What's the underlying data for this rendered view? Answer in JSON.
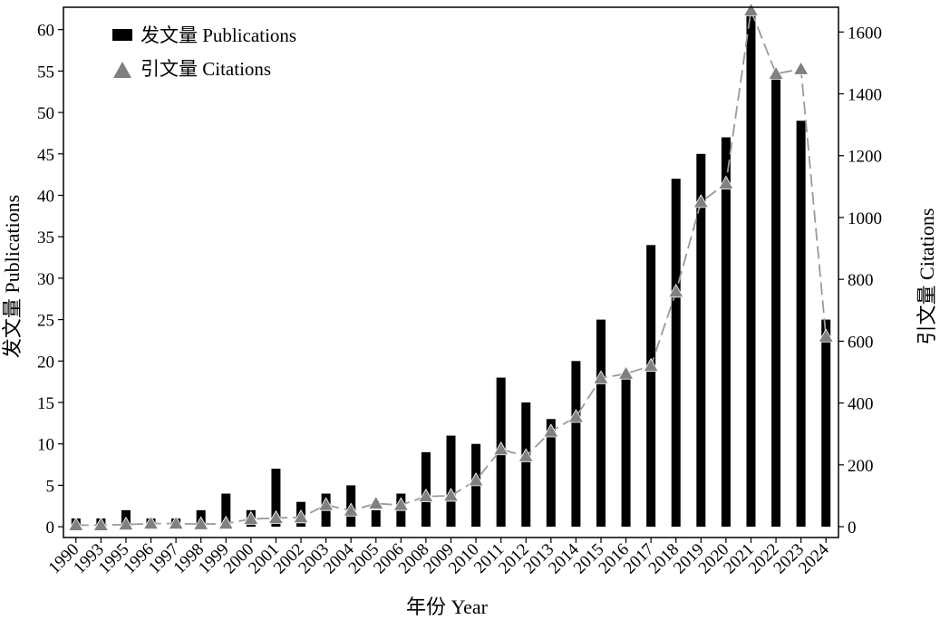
{
  "chart_data": {
    "type": "bar",
    "categories": [
      "1990",
      "1993",
      "1995",
      "1996",
      "1997",
      "1998",
      "1999",
      "2000",
      "2001",
      "2002",
      "2003",
      "2004",
      "2005",
      "2006",
      "2008",
      "2009",
      "2010",
      "2011",
      "2012",
      "2013",
      "2014",
      "2015",
      "2016",
      "2017",
      "2018",
      "2019",
      "2020",
      "2021",
      "2022",
      "2023",
      "2024"
    ],
    "series": [
      {
        "name": "发文量 Publications",
        "kind": "bar",
        "axis": "left",
        "color": "#000000",
        "values": [
          1,
          1,
          2,
          1,
          1,
          2,
          4,
          2,
          7,
          3,
          4,
          5,
          2,
          4,
          9,
          11,
          10,
          18,
          15,
          13,
          20,
          25,
          18,
          34,
          42,
          45,
          47,
          62,
          54,
          49,
          25
        ]
      },
      {
        "name": "引文量 Citations",
        "kind": "line",
        "axis": "right",
        "color": "#808080",
        "marker": "triangle",
        "line_style": "dashed",
        "values": [
          5,
          5,
          7,
          10,
          10,
          8,
          10,
          25,
          28,
          30,
          70,
          52,
          75,
          70,
          98,
          100,
          150,
          250,
          228,
          308,
          355,
          480,
          495,
          520,
          760,
          1050,
          1110,
          1670,
          1465,
          1480,
          615
        ]
      }
    ],
    "xlabel": "年份 Year",
    "ylabel_left": "发文量 Publications",
    "ylabel_right": "引文量 Citations",
    "ylim_left": [
      -1.3,
      62.7
    ],
    "yticks_left": [
      0,
      5,
      10,
      15,
      20,
      25,
      30,
      35,
      40,
      45,
      50,
      55,
      60
    ],
    "ylim_right": [
      -35,
      1680
    ],
    "yticks_right": [
      0,
      200,
      400,
      600,
      800,
      1000,
      1200,
      1400,
      1600
    ],
    "legend": {
      "placement": "top-left",
      "entries": [
        "发文量 Publications",
        "引文量 Citations"
      ]
    },
    "grid": false
  }
}
